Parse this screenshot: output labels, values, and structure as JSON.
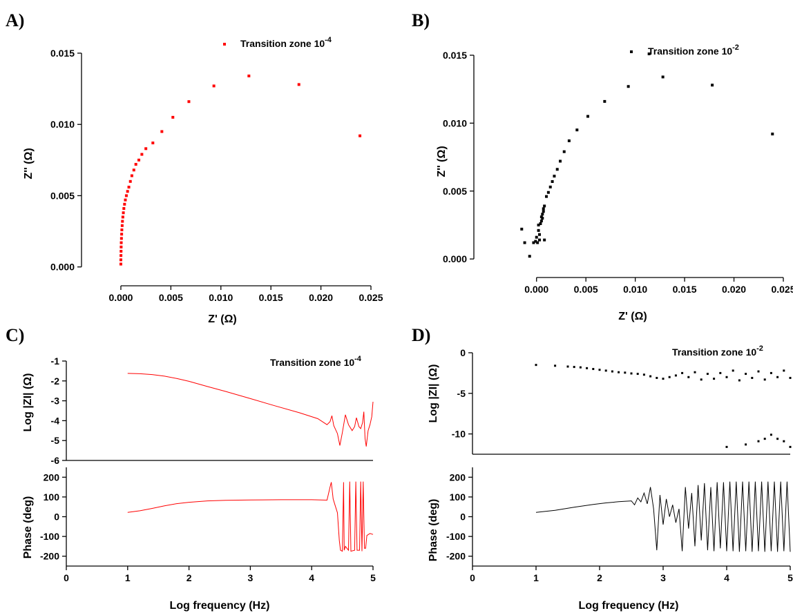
{
  "panel_labels": {
    "A": "A)",
    "B": "B)",
    "C": "C)",
    "D": "D)"
  },
  "chart_data": [
    {
      "id": "A",
      "type": "scatter",
      "color": "#ff0000",
      "legend": {
        "text": "Transition zone 10",
        "sup": "-4",
        "position": "top-center"
      },
      "xlabel": "Z' (Ω)",
      "ylabel": "Z'' (Ω)",
      "xlim": [
        -0.002,
        0.025
      ],
      "ylim": [
        -0.0005,
        0.015
      ],
      "xticks": [
        0.0,
        0.005,
        0.01,
        0.015,
        0.02,
        0.025
      ],
      "xtick_labels": [
        "0.000",
        "0.005",
        "0.010",
        "0.015",
        "0.020",
        "0.025"
      ],
      "yticks": [
        0.0,
        0.005,
        0.01,
        0.015
      ],
      "ytick_labels": [
        "0.000",
        "0.005",
        "0.010",
        "0.015"
      ],
      "points": [
        [
          0.0,
          0.0002
        ],
        [
          0.0,
          0.0005
        ],
        [
          1e-05,
          0.0008
        ],
        [
          2e-05,
          0.0011
        ],
        [
          3e-05,
          0.0014
        ],
        [
          4e-05,
          0.0017
        ],
        [
          6e-05,
          0.002
        ],
        [
          8e-05,
          0.0023
        ],
        [
          0.0001,
          0.0026
        ],
        [
          0.00013,
          0.0029
        ],
        [
          0.00016,
          0.0032
        ],
        [
          0.0002,
          0.0035
        ],
        [
          0.00025,
          0.0038
        ],
        [
          0.0003,
          0.0041
        ],
        [
          0.00037,
          0.0044
        ],
        [
          0.00045,
          0.0047
        ],
        [
          0.00055,
          0.005
        ],
        [
          0.00067,
          0.0053
        ],
        [
          0.0008,
          0.0056
        ],
        [
          0.00095,
          0.006
        ],
        [
          0.0011,
          0.0064
        ],
        [
          0.0013,
          0.0068
        ],
        [
          0.0015,
          0.0072
        ],
        [
          0.0018,
          0.0075
        ],
        [
          0.0021,
          0.0079
        ],
        [
          0.0025,
          0.0083
        ],
        [
          0.0032,
          0.0087
        ],
        [
          0.0041,
          0.0095
        ],
        [
          0.0052,
          0.0105
        ],
        [
          0.0068,
          0.0116
        ],
        [
          0.0093,
          0.0127
        ],
        [
          0.0128,
          0.0134
        ],
        [
          0.0178,
          0.0128
        ],
        [
          0.0239,
          0.0092
        ]
      ]
    },
    {
      "id": "B",
      "type": "scatter",
      "color": "#000000",
      "legend": {
        "text": "Transition zone 10",
        "sup": "-2",
        "position": "top-center"
      },
      "xlabel": "Z' (Ω)",
      "ylabel": "Z'' (Ω)",
      "xlim": [
        -0.0018,
        0.025
      ],
      "ylim": [
        -0.0005,
        0.015
      ],
      "xticks": [
        0.0,
        0.005,
        0.01,
        0.015,
        0.02,
        0.025
      ],
      "xtick_labels": [
        "0.000",
        "0.005",
        "0.010",
        "0.015",
        "0.020",
        "0.025"
      ],
      "yticks": [
        0.0,
        0.005,
        0.01,
        0.015
      ],
      "ytick_labels": [
        "0.000",
        "0.005",
        "0.010",
        "0.015"
      ],
      "points": [
        [
          -0.0015,
          0.0022
        ],
        [
          -0.0012,
          0.0012
        ],
        [
          -0.0007,
          0.0002
        ],
        [
          -0.0003,
          0.0012
        ],
        [
          -0.0001,
          0.0013
        ],
        [
          0.0,
          0.0016
        ],
        [
          0.0001,
          0.0012
        ],
        [
          0.0002,
          0.0021
        ],
        [
          0.0003,
          0.0014
        ],
        [
          0.0002,
          0.0025
        ],
        [
          0.0004,
          0.0026
        ],
        [
          0.0003,
          0.0018
        ],
        [
          0.0005,
          0.0028
        ],
        [
          0.0006,
          0.003
        ],
        [
          0.0008,
          0.0014
        ],
        [
          0.0005,
          0.0031
        ],
        [
          0.0006,
          0.0033
        ],
        [
          0.0007,
          0.0035
        ],
        [
          0.0007,
          0.0037
        ],
        [
          0.0008,
          0.0039
        ],
        [
          0.001,
          0.0046
        ],
        [
          0.0012,
          0.0049
        ],
        [
          0.0014,
          0.0053
        ],
        [
          0.0016,
          0.0057
        ],
        [
          0.0018,
          0.0061
        ],
        [
          0.0021,
          0.0066
        ],
        [
          0.0024,
          0.0072
        ],
        [
          0.0028,
          0.0079
        ],
        [
          0.0033,
          0.0087
        ],
        [
          0.0041,
          0.0095
        ],
        [
          0.0052,
          0.0105
        ],
        [
          0.0069,
          0.0116
        ],
        [
          0.0093,
          0.0127
        ],
        [
          0.0114,
          0.0151
        ],
        [
          0.0128,
          0.0134
        ],
        [
          0.0178,
          0.0128
        ],
        [
          0.0239,
          0.0092
        ]
      ]
    },
    {
      "id": "C-top",
      "type": "line",
      "color": "#ff0000",
      "legend": {
        "text": "Transition zone 10",
        "sup": "-4",
        "position": "top-right"
      },
      "ylabel": "Log |ZI| (Ω)",
      "xlim": [
        0,
        5
      ],
      "ylim": [
        -6,
        -1
      ],
      "yticks": [
        -1,
        -2,
        -3,
        -4,
        -5,
        -6
      ],
      "ytick_labels": [
        "-1",
        "-2",
        "-3",
        "-4",
        "-5",
        "-6"
      ],
      "points": [
        [
          1.0,
          -1.62
        ],
        [
          1.2,
          -1.64
        ],
        [
          1.4,
          -1.68
        ],
        [
          1.6,
          -1.76
        ],
        [
          1.8,
          -1.88
        ],
        [
          2.0,
          -2.02
        ],
        [
          2.3,
          -2.28
        ],
        [
          2.6,
          -2.53
        ],
        [
          3.0,
          -2.89
        ],
        [
          3.4,
          -3.25
        ],
        [
          3.8,
          -3.6
        ],
        [
          4.1,
          -3.9
        ],
        [
          4.25,
          -4.2
        ],
        [
          4.3,
          -4.05
        ],
        [
          4.33,
          -3.75
        ],
        [
          4.36,
          -4.25
        ],
        [
          4.42,
          -4.65
        ],
        [
          4.46,
          -5.25
        ],
        [
          4.5,
          -4.6
        ],
        [
          4.55,
          -3.7
        ],
        [
          4.6,
          -4.2
        ],
        [
          4.66,
          -4.5
        ],
        [
          4.7,
          -4.3
        ],
        [
          4.73,
          -3.85
        ],
        [
          4.77,
          -4.3
        ],
        [
          4.8,
          -4.4
        ],
        [
          4.83,
          -4.1
        ],
        [
          4.85,
          -3.55
        ],
        [
          4.87,
          -4.9
        ],
        [
          4.89,
          -5.3
        ],
        [
          4.92,
          -4.5
        ],
        [
          4.95,
          -4.2
        ],
        [
          4.98,
          -3.8
        ],
        [
          5.0,
          -3.05
        ]
      ]
    },
    {
      "id": "C-bottom",
      "type": "line",
      "color": "#ff0000",
      "ylabel": "Phase (deg)",
      "xlabel": "Log frequency (Hz)",
      "xlim": [
        0,
        5
      ],
      "ylim": [
        -250,
        250
      ],
      "xticks": [
        0,
        1,
        2,
        3,
        4,
        5
      ],
      "xtick_labels": [
        "0",
        "1",
        "2",
        "3",
        "4",
        "5"
      ],
      "yticks": [
        200,
        100,
        0,
        -100,
        -200
      ],
      "ytick_labels": [
        "200",
        "100",
        "0",
        "-100",
        "-200"
      ],
      "points": [
        [
          1.0,
          22
        ],
        [
          1.2,
          30
        ],
        [
          1.4,
          42
        ],
        [
          1.6,
          55
        ],
        [
          1.8,
          66
        ],
        [
          2.0,
          73
        ],
        [
          2.3,
          80
        ],
        [
          2.6,
          83
        ],
        [
          3.0,
          85
        ],
        [
          3.5,
          86
        ],
        [
          4.0,
          86
        ],
        [
          4.25,
          84
        ],
        [
          4.3,
          150
        ],
        [
          4.32,
          175
        ],
        [
          4.35,
          90
        ],
        [
          4.38,
          60
        ],
        [
          4.42,
          20
        ],
        [
          4.45,
          -120
        ],
        [
          4.47,
          -170
        ],
        [
          4.5,
          -175
        ],
        [
          4.52,
          175
        ],
        [
          4.53,
          -170
        ],
        [
          4.55,
          -150
        ],
        [
          4.6,
          -170
        ],
        [
          4.62,
          178
        ],
        [
          4.64,
          -175
        ],
        [
          4.7,
          -170
        ],
        [
          4.72,
          178
        ],
        [
          4.74,
          -170
        ],
        [
          4.78,
          -170
        ],
        [
          4.8,
          178
        ],
        [
          4.82,
          -175
        ],
        [
          4.84,
          178
        ],
        [
          4.86,
          -160
        ],
        [
          4.88,
          -160
        ],
        [
          4.9,
          -95
        ],
        [
          4.95,
          -85
        ],
        [
          5.0,
          -90
        ]
      ]
    },
    {
      "id": "D-top",
      "type": "scatter",
      "color": "#000000",
      "legend": {
        "text": "Transition zone 10",
        "sup": "-2",
        "position": "top-right"
      },
      "ylabel": "Log |ZI| (Ω)",
      "xlim": [
        0,
        5
      ],
      "ylim": [
        -12.5,
        0
      ],
      "yticks": [
        0,
        -5,
        -10
      ],
      "ytick_labels": [
        "0",
        "-5",
        "-10"
      ],
      "points": [
        [
          1.0,
          -1.5
        ],
        [
          1.3,
          -1.6
        ],
        [
          1.5,
          -1.7
        ],
        [
          1.6,
          -1.75
        ],
        [
          1.7,
          -1.8
        ],
        [
          1.8,
          -1.9
        ],
        [
          1.9,
          -2.0
        ],
        [
          2.0,
          -2.1
        ],
        [
          2.1,
          -2.2
        ],
        [
          2.2,
          -2.3
        ],
        [
          2.3,
          -2.4
        ],
        [
          2.4,
          -2.45
        ],
        [
          2.5,
          -2.55
        ],
        [
          2.6,
          -2.6
        ],
        [
          2.7,
          -2.7
        ],
        [
          2.8,
          -2.9
        ],
        [
          2.9,
          -3.1
        ],
        [
          3.0,
          -3.2
        ],
        [
          3.1,
          -3.0
        ],
        [
          3.2,
          -2.8
        ],
        [
          3.3,
          -2.5
        ],
        [
          3.4,
          -3.0
        ],
        [
          3.5,
          -2.4
        ],
        [
          3.6,
          -3.3
        ],
        [
          3.7,
          -2.6
        ],
        [
          3.8,
          -3.2
        ],
        [
          3.9,
          -2.5
        ],
        [
          4.0,
          -3.0
        ],
        [
          4.1,
          -2.2
        ],
        [
          4.2,
          -3.4
        ],
        [
          4.3,
          -2.6
        ],
        [
          4.4,
          -3.1
        ],
        [
          4.5,
          -2.3
        ],
        [
          4.6,
          -3.3
        ],
        [
          4.7,
          -2.5
        ],
        [
          4.8,
          -3.0
        ],
        [
          4.9,
          -2.2
        ],
        [
          5.0,
          -3.1
        ],
        [
          4.0,
          -11.6
        ],
        [
          4.3,
          -11.3
        ],
        [
          4.5,
          -10.9
        ],
        [
          4.6,
          -10.6
        ],
        [
          4.7,
          -10.1
        ],
        [
          4.8,
          -10.6
        ],
        [
          4.9,
          -10.9
        ],
        [
          5.0,
          -11.6
        ]
      ]
    },
    {
      "id": "D-bottom",
      "type": "line",
      "color": "#000000",
      "ylabel": "Phase (deg)",
      "xlabel": "Log frequency (Hz)",
      "xlim": [
        0,
        5
      ],
      "ylim": [
        -250,
        250
      ],
      "xticks": [
        0,
        1,
        2,
        3,
        4,
        5
      ],
      "xtick_labels": [
        "0",
        "1",
        "2",
        "3",
        "4",
        "5"
      ],
      "yticks": [
        200,
        100,
        0,
        -100,
        -200
      ],
      "ytick_labels": [
        "200",
        "100",
        "0",
        "-100",
        "-200"
      ],
      "points": [
        [
          1.0,
          22
        ],
        [
          1.3,
          32
        ],
        [
          1.6,
          48
        ],
        [
          1.9,
          62
        ],
        [
          2.1,
          70
        ],
        [
          2.3,
          76
        ],
        [
          2.5,
          80
        ],
        [
          2.55,
          60
        ],
        [
          2.6,
          95
        ],
        [
          2.65,
          75
        ],
        [
          2.7,
          120
        ],
        [
          2.75,
          65
        ],
        [
          2.8,
          150
        ],
        [
          2.85,
          40
        ],
        [
          2.9,
          -170
        ],
        [
          2.95,
          110
        ],
        [
          3.0,
          -40
        ],
        [
          3.05,
          90
        ],
        [
          3.1,
          0
        ],
        [
          3.15,
          60
        ],
        [
          3.2,
          -30
        ],
        [
          3.25,
          40
        ],
        [
          3.3,
          -175
        ],
        [
          3.35,
          150
        ],
        [
          3.4,
          -60
        ],
        [
          3.45,
          120
        ],
        [
          3.5,
          -150
        ],
        [
          3.55,
          160
        ],
        [
          3.6,
          -120
        ],
        [
          3.65,
          170
        ],
        [
          3.7,
          -170
        ],
        [
          3.75,
          150
        ],
        [
          3.8,
          -175
        ],
        [
          3.85,
          175
        ],
        [
          3.9,
          -160
        ],
        [
          3.95,
          175
        ],
        [
          4.0,
          -175
        ],
        [
          4.05,
          178
        ],
        [
          4.1,
          -175
        ],
        [
          4.15,
          178
        ],
        [
          4.2,
          -178
        ],
        [
          4.25,
          178
        ],
        [
          4.3,
          -175
        ],
        [
          4.35,
          178
        ],
        [
          4.4,
          -178
        ],
        [
          4.45,
          178
        ],
        [
          4.5,
          -175
        ],
        [
          4.55,
          178
        ],
        [
          4.6,
          -178
        ],
        [
          4.65,
          178
        ],
        [
          4.7,
          -175
        ],
        [
          4.75,
          178
        ],
        [
          4.8,
          -178
        ],
        [
          4.85,
          178
        ],
        [
          4.9,
          -175
        ],
        [
          4.95,
          178
        ],
        [
          5.0,
          -178
        ]
      ]
    }
  ]
}
